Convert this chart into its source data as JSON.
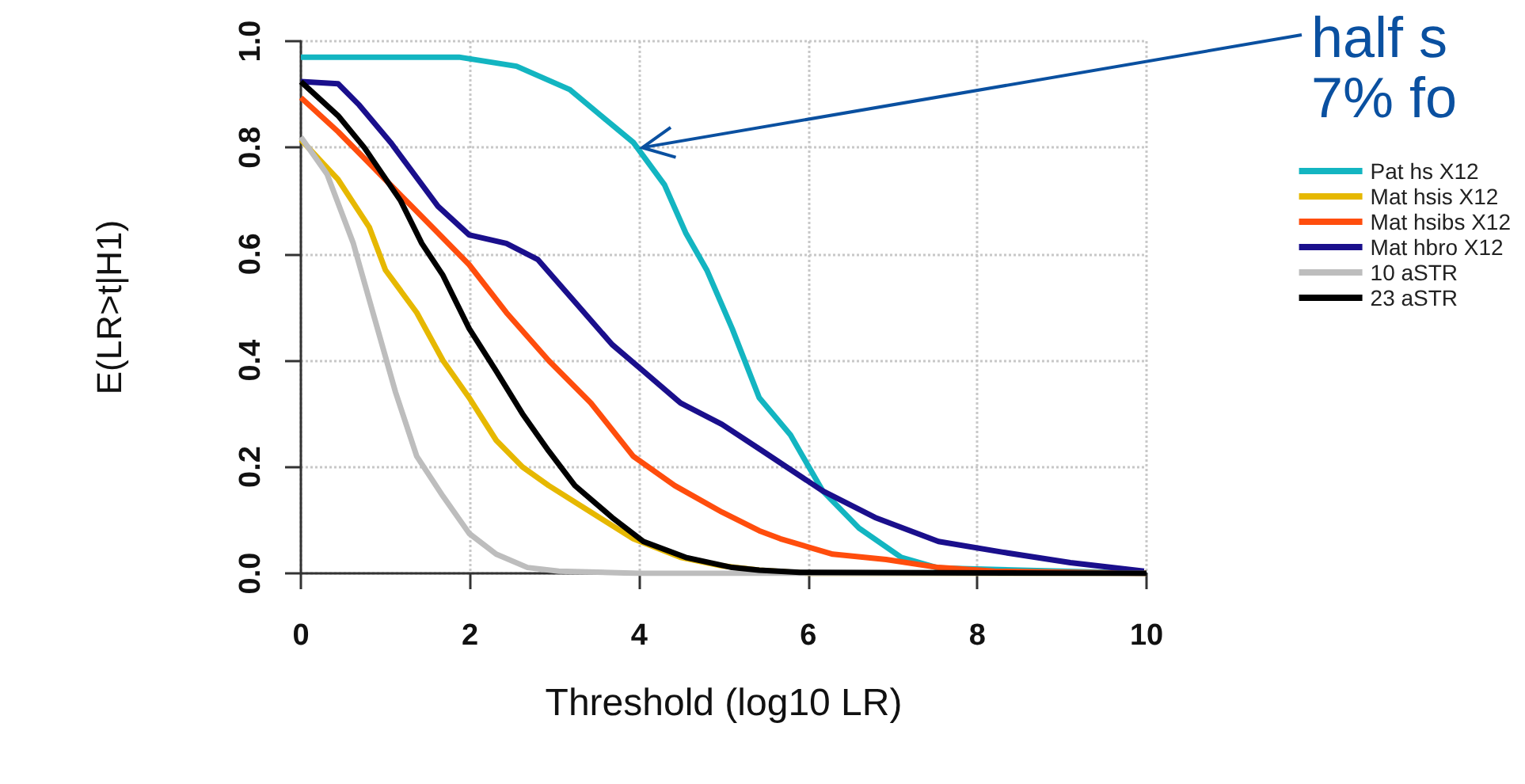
{
  "chart_data": {
    "type": "line",
    "xlabel": "Threshold (log10 LR)",
    "ylabel": "E(LR>t|H1)",
    "xlim": [
      0,
      10
    ],
    "xticks": [
      0,
      2,
      4,
      6,
      8,
      10
    ],
    "ylim": [
      0,
      1
    ],
    "yticks": [
      {
        "value": 0,
        "label": "0.0"
      },
      {
        "value": 0.2,
        "label": "0.2"
      },
      {
        "value": 0.4,
        "label": "0.4"
      },
      {
        "value": 0.6,
        "label": "0.6"
      },
      {
        "value": 0.8,
        "label": "0.8"
      },
      {
        "value": 1,
        "label": "1.0"
      }
    ],
    "grid": true,
    "legend": "right",
    "annotations": [
      {
        "text": "half s\n7% fo",
        "x": 4,
        "y": 0.8
      }
    ],
    "series": [
      {
        "name": "Pat hs X12",
        "color": "#13b5c1",
        "x": [
          0,
          1.87,
          2.55,
          3.18,
          3.55,
          3.93,
          4.3,
          4.55,
          4.8,
          5.1,
          5.42,
          5.79,
          6.17,
          6.6,
          7.1,
          7.54,
          8.8,
          10
        ],
        "values": [
          0.97,
          0.97,
          0.953,
          0.909,
          0.86,
          0.81,
          0.73,
          0.64,
          0.57,
          0.46,
          0.33,
          0.26,
          0.155,
          0.085,
          0.03,
          0.01,
          0.005,
          0
        ]
      },
      {
        "name": "Mat hsis X12",
        "color": "#e6b800",
        "x": [
          0,
          0.44,
          0.81,
          1.0,
          1.37,
          1.68,
          1.99,
          2.31,
          2.62,
          2.93,
          3.43,
          3.93,
          4.49,
          4.98,
          5.42,
          6,
          10
        ],
        "values": [
          0.815,
          0.74,
          0.65,
          0.57,
          0.49,
          0.4,
          0.33,
          0.25,
          0.2,
          0.165,
          0.115,
          0.065,
          0.03,
          0.014,
          0.006,
          0,
          0
        ]
      },
      {
        "name": "Mat hsibs X12",
        "color": "#ff4d0d",
        "x": [
          0,
          0.44,
          1.06,
          1.62,
          1.99,
          2.43,
          2.93,
          3.43,
          3.93,
          4.42,
          4.98,
          5.42,
          5.67,
          6.29,
          6.92,
          7.54,
          8.2,
          10
        ],
        "values": [
          0.894,
          0.83,
          0.73,
          0.64,
          0.58,
          0.49,
          0.4,
          0.32,
          0.22,
          0.165,
          0.115,
          0.08,
          0.065,
          0.036,
          0.026,
          0.011,
          0.004,
          0
        ]
      },
      {
        "name": "Mat hbro X12",
        "color": "#1a0f8c",
        "x": [
          0,
          0.44,
          0.69,
          1.06,
          1.62,
          1.99,
          2.43,
          2.8,
          3.24,
          3.68,
          4.05,
          4.49,
          4.98,
          5.42,
          6.17,
          6.79,
          7.54,
          8.29,
          9.1,
          9.97
        ],
        "values": [
          0.924,
          0.92,
          0.88,
          0.81,
          0.69,
          0.636,
          0.62,
          0.59,
          0.51,
          0.43,
          0.38,
          0.32,
          0.28,
          0.234,
          0.155,
          0.105,
          0.06,
          0.04,
          0.02,
          0.004
        ]
      },
      {
        "name": "10 aSTR",
        "color": "#bdbdbd",
        "x": [
          0,
          0.31,
          0.62,
          0.87,
          1.12,
          1.37,
          1.68,
          1.99,
          2.31,
          2.68,
          3.05,
          4,
          10
        ],
        "values": [
          0.82,
          0.75,
          0.62,
          0.48,
          0.34,
          0.22,
          0.145,
          0.075,
          0.036,
          0.011,
          0.004,
          0,
          0
        ]
      },
      {
        "name": "23 aSTR",
        "color": "#000000",
        "x": [
          0,
          0.44,
          0.75,
          1.18,
          1.43,
          1.68,
          1.99,
          2.31,
          2.62,
          2.93,
          3.24,
          3.68,
          4.05,
          4.55,
          5.1,
          5.42,
          5.9,
          10
        ],
        "values": [
          0.924,
          0.86,
          0.8,
          0.7,
          0.62,
          0.56,
          0.46,
          0.38,
          0.3,
          0.23,
          0.165,
          0.105,
          0.06,
          0.03,
          0.011,
          0.006,
          0.002,
          0
        ]
      }
    ]
  }
}
